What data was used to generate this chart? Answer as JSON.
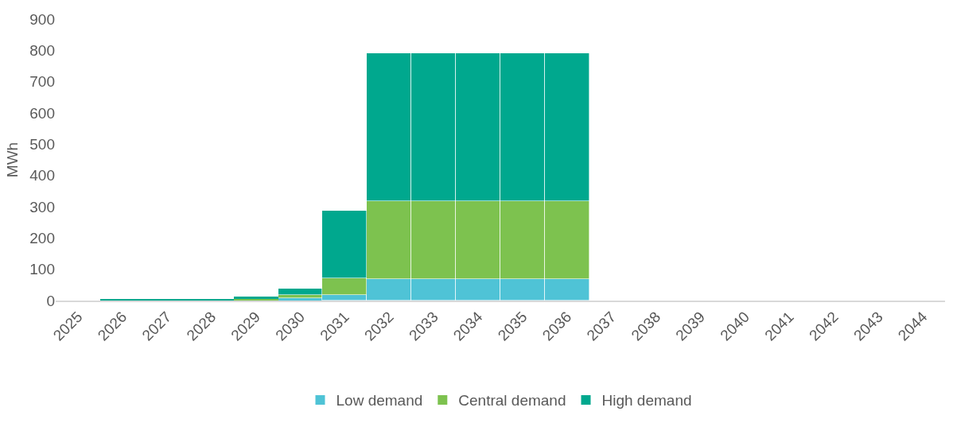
{
  "chart_data": {
    "type": "bar",
    "stacked": true,
    "ylabel": "MWh",
    "categories": [
      "2025",
      "2026",
      "2027",
      "2028",
      "2029",
      "2030",
      "2031",
      "2032",
      "2033",
      "2034",
      "2035",
      "2036",
      "2037",
      "2038",
      "2039",
      "2040",
      "2041",
      "2042",
      "2043",
      "2044"
    ],
    "series": [
      {
        "name": "Low demand",
        "color": "#4fc3d6",
        "values": [
          0,
          0,
          0,
          0,
          2,
          7,
          19,
          68,
          68,
          68,
          68,
          68,
          0,
          0,
          0,
          0,
          0,
          0,
          0,
          0
        ]
      },
      {
        "name": "Central demand",
        "color": "#7dc24f",
        "values": [
          0,
          0,
          0,
          0,
          3,
          12,
          51,
          250,
          250,
          250,
          250,
          250,
          0,
          0,
          0,
          0,
          0,
          0,
          0,
          0
        ]
      },
      {
        "name": "High demand",
        "color": "#00a88e",
        "values": [
          0,
          3,
          3,
          3,
          7,
          18,
          218,
          472,
          472,
          472,
          472,
          472,
          0,
          0,
          0,
          0,
          0,
          0,
          0,
          0
        ]
      }
    ],
    "ylim": [
      0,
      900
    ],
    "yticks": [
      0,
      100,
      200,
      300,
      400,
      500,
      600,
      700,
      800,
      900
    ],
    "grid": false,
    "legend": "bottom"
  }
}
